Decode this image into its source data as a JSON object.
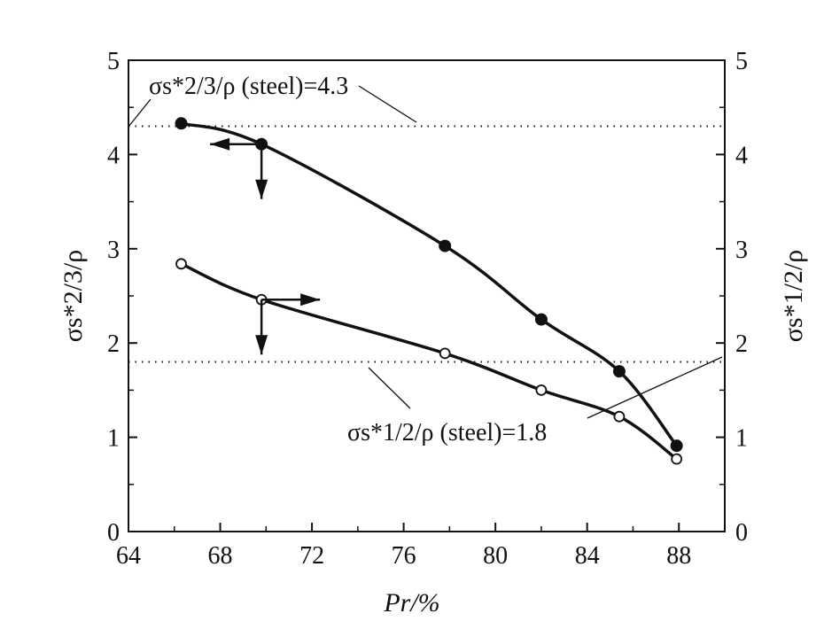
{
  "chart_data": {
    "type": "line",
    "title": "",
    "xlabel": "Pr/%",
    "ylabel_left": "σs*2/3/ρ",
    "ylabel_right": "σs*1/2/ρ",
    "x_ticks": [
      "64",
      "68",
      "72",
      "76",
      "80",
      "84",
      "88"
    ],
    "y_ticks_left": [
      "0",
      "1",
      "2",
      "3",
      "4",
      "5"
    ],
    "y_ticks_right": [
      "0",
      "1",
      "2",
      "3",
      "4",
      "5"
    ],
    "xlim": [
      64,
      90
    ],
    "ylim": [
      0,
      5
    ],
    "grid": false,
    "series": [
      {
        "axis": "left",
        "marker": "filled-circle",
        "x": [
          66.3,
          69.8,
          77.8,
          82.0,
          85.4,
          87.9
        ],
        "y": [
          4.33,
          4.11,
          3.03,
          2.25,
          1.7,
          0.91
        ]
      },
      {
        "axis": "right",
        "marker": "open-circle",
        "x": [
          66.3,
          69.8,
          77.8,
          82.0,
          85.4,
          87.9
        ],
        "y": [
          2.84,
          2.46,
          1.89,
          1.5,
          1.22,
          0.77
        ]
      }
    ],
    "reference_lines": [
      {
        "y": 4.3,
        "label": "σs*2/3/ρ (steel)=4.3"
      },
      {
        "y": 1.8,
        "label": "σs*1/2/ρ (steel)=1.8"
      }
    ],
    "axis_indicators": [
      {
        "at_x": 69.8,
        "at_y": 4.11,
        "horizontal": "left",
        "vertical": "down"
      },
      {
        "at_x": 69.8,
        "at_y": 2.46,
        "horizontal": "right",
        "vertical": "down"
      }
    ]
  }
}
